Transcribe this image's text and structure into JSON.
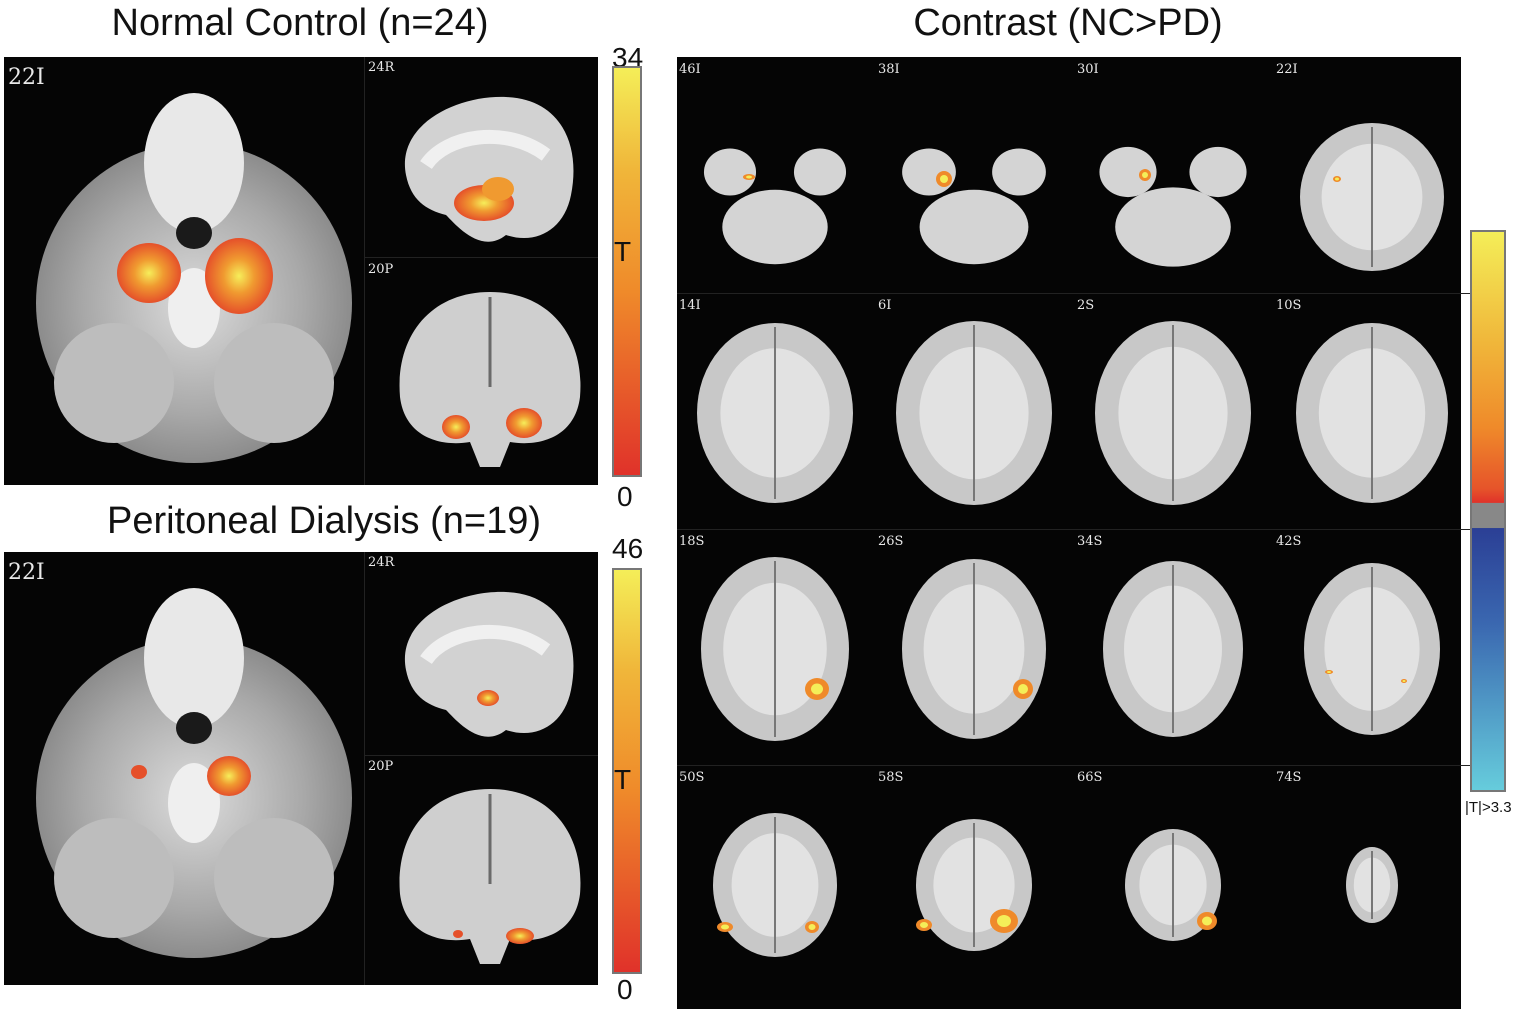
{
  "panels": {
    "nc": {
      "title": "Normal Control (n=24)",
      "axial_label": "22I",
      "sagittal_label": "24R",
      "coronal_label": "20P",
      "colorbar": {
        "max": "34",
        "min": "0",
        "axis_label": "T"
      }
    },
    "pd": {
      "title": "Peritoneal Dialysis (n=19)",
      "axial_label": "22I",
      "sagittal_label": "24R",
      "coronal_label": "20P",
      "colorbar": {
        "max": "46",
        "min": "0",
        "axis_label": "T"
      }
    },
    "contrast": {
      "title": "Contrast (NC>PD)",
      "slices": [
        "46I",
        "38I",
        "30I",
        "22I",
        "14I",
        "6I",
        "2S",
        "10S",
        "18S",
        "26S",
        "34S",
        "42S",
        "50S",
        "58S",
        "66S",
        "74S"
      ],
      "colorbar_label": "|T|>3.3"
    }
  },
  "colors": {
    "hot_low": "#e0322a",
    "hot_mid": "#ef8a2a",
    "hot_high": "#f4ee58",
    "cool_low": "#2b3f95",
    "cool_high": "#66ccdc",
    "threshold_gray": "#888888"
  }
}
